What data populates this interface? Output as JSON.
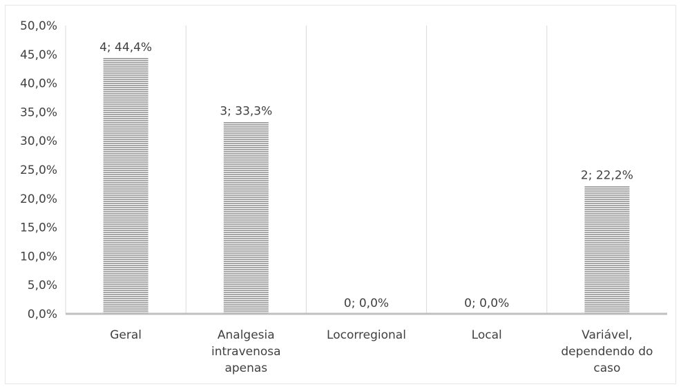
{
  "chart_data": {
    "type": "bar",
    "categories": [
      [
        "Geral"
      ],
      [
        "Analgesia",
        "intravenosa",
        "apenas"
      ],
      [
        "Locorregional"
      ],
      [
        "Local"
      ],
      [
        "Variável,",
        "dependendo do",
        "caso"
      ]
    ],
    "values": [
      44.4,
      33.3,
      0.0,
      0.0,
      22.2
    ],
    "data_labels": [
      "4; 44,4%",
      "3; 33,3%",
      "0; 0,0%",
      "0; 0,0%",
      "2; 22,2%"
    ],
    "y_ticks": [
      "0,0%",
      "5,0%",
      "10,0%",
      "15,0%",
      "20,0%",
      "25,0%",
      "30,0%",
      "35,0%",
      "40,0%",
      "45,0%",
      "50,0%"
    ],
    "ylim": [
      0,
      50
    ],
    "y_step": 5,
    "grid": "vertical category separators",
    "legend": "none",
    "title": "",
    "xlabel": "",
    "ylabel": "",
    "colors": {
      "bar": "#a6a6a6",
      "bar_stripe": "#ffffff",
      "axis": "#bfbfbf",
      "grid": "#d9d9d9",
      "text": "#404040"
    }
  }
}
